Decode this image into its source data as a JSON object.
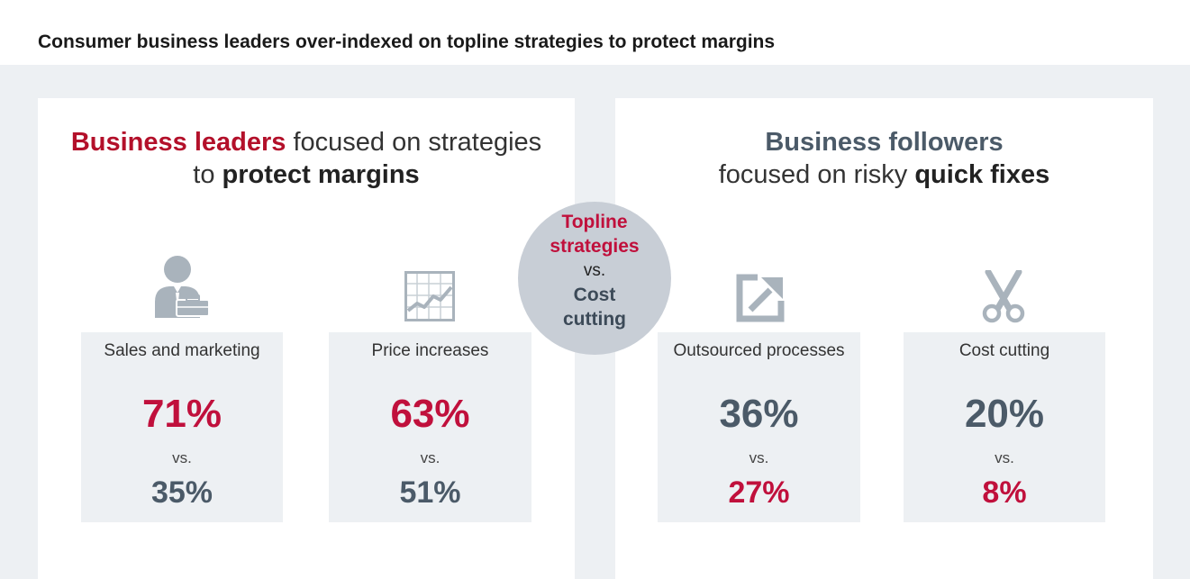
{
  "title": "Consumer business leaders over-indexed on topline strategies to protect margins",
  "left_panel": {
    "heading_accent": "Business leaders",
    "heading_text1": " focused on strategies",
    "heading_text2": "to ",
    "heading_strong": "protect margins"
  },
  "right_panel": {
    "heading_accent": "Business followers",
    "heading_text": "focused on risky ",
    "heading_strong": "quick fixes"
  },
  "center": {
    "line1": "Topline strategies",
    "vs": "vs.",
    "line2": "Cost cutting"
  },
  "stats": [
    {
      "label": "Sales and marketing",
      "primary": "71%",
      "vs": "vs.",
      "secondary": "35%",
      "icon": "businessman-icon"
    },
    {
      "label": "Price increases",
      "primary": "63%",
      "vs": "vs.",
      "secondary": "51%",
      "icon": "line-chart-icon"
    },
    {
      "label": "Outsourced processes",
      "primary": "36%",
      "vs": "vs.",
      "secondary": "27%",
      "icon": "export-arrow-icon"
    },
    {
      "label": "Cost cutting",
      "primary": "20%",
      "vs": "vs.",
      "secondary": "8%",
      "icon": "scissors-icon"
    }
  ],
  "colors": {
    "accent_red": "#c0103c",
    "slate": "#4b5a68",
    "icon_gray": "#a9b3bc",
    "backdrop": "#edf0f3"
  }
}
